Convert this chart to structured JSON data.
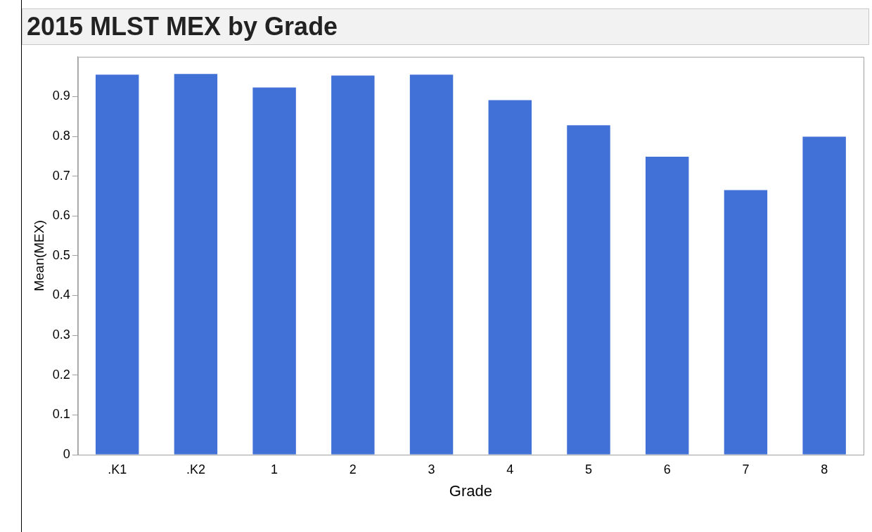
{
  "chart_data": {
    "type": "bar",
    "title": "2015 MLST MEX by Grade",
    "xlabel": "Grade",
    "ylabel": "Mean(MEX)",
    "categories": [
      ".K1",
      ".K2",
      "1",
      "2",
      "3",
      "4",
      "5",
      "6",
      "7",
      "8"
    ],
    "values": [
      0.955,
      0.957,
      0.923,
      0.953,
      0.955,
      0.891,
      0.828,
      0.749,
      0.665,
      0.799
    ],
    "color": "#4170d7",
    "ylim": [
      0,
      1.0
    ],
    "yticks": [
      0,
      0.1,
      0.2,
      0.3,
      0.4,
      0.5,
      0.6,
      0.7,
      0.8,
      0.9
    ],
    "grid": false,
    "legend": false
  }
}
